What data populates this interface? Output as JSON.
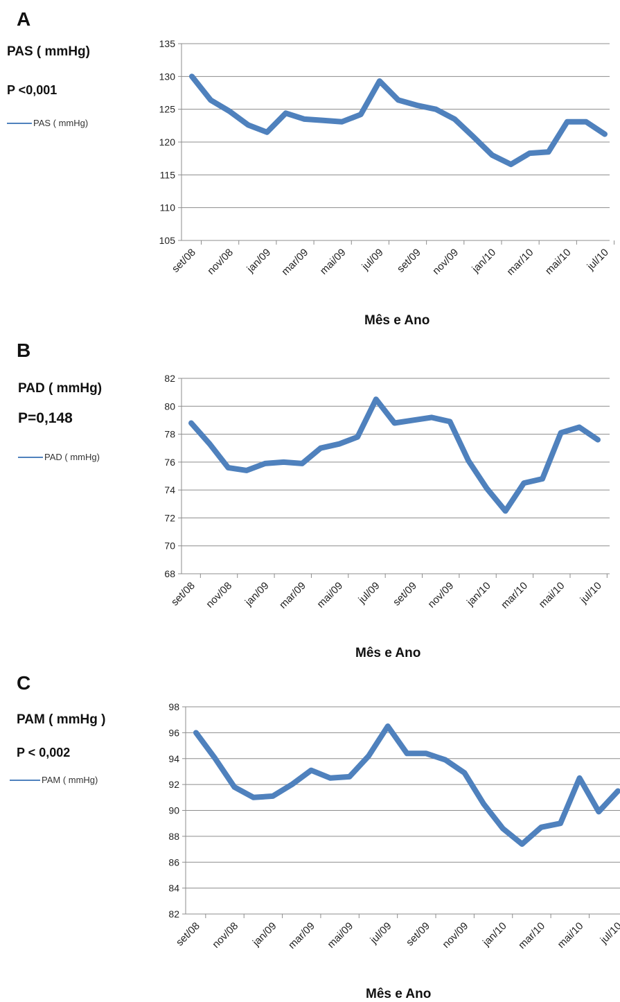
{
  "chart_data": [
    {
      "type": "line",
      "panel_letter": "A",
      "ylabel": "PAS ( mmHg)",
      "p_value": "P <0,001",
      "legend_label": "PAS ( mmHg)",
      "xlabel": "Mês e Ano",
      "ylim": [
        105,
        135
      ],
      "ytick_step": 5,
      "grid": true,
      "legend_position": "left",
      "color": "#4f81bd",
      "tick_labels": [
        "set/08",
        "nov/08",
        "jan/09",
        "mar/09",
        "mai/09",
        "jul/09",
        "set/09",
        "nov/09",
        "jan/10",
        "mar/10",
        "mai/10",
        "jul/10"
      ],
      "series": [
        {
          "name": "PAS ( mmHg)",
          "values": [
            130.0,
            126.4,
            124.7,
            122.6,
            121.5,
            124.4,
            123.5,
            123.3,
            123.1,
            124.2,
            129.3,
            126.4,
            125.6,
            125.0,
            123.5,
            120.8,
            118.0,
            116.6,
            118.3,
            118.5,
            123.1,
            123.1,
            121.2
          ]
        }
      ]
    },
    {
      "type": "line",
      "panel_letter": "B",
      "ylabel": "PAD ( mmHg)",
      "p_value": "P=0,148",
      "legend_label": "PAD ( mmHg)",
      "xlabel": "Mês e Ano",
      "ylim": [
        68,
        82
      ],
      "ytick_step": 2,
      "grid": true,
      "legend_position": "left",
      "color": "#4f81bd",
      "tick_labels": [
        "set/08",
        "nov/08",
        "jan/09",
        "mar/09",
        "mai/09",
        "jul/09",
        "set/09",
        "nov/09",
        "jan/10",
        "mar/10",
        "mai/10",
        "jul/10"
      ],
      "series": [
        {
          "name": "PAD ( mmHg)",
          "values": [
            78.8,
            77.3,
            75.6,
            75.4,
            75.9,
            76.0,
            75.9,
            77.0,
            77.3,
            77.8,
            80.5,
            78.8,
            79.0,
            79.2,
            78.9,
            76.1,
            74.1,
            72.5,
            74.5,
            74.8,
            78.1,
            78.5,
            77.6
          ]
        }
      ]
    },
    {
      "type": "line",
      "panel_letter": "C",
      "ylabel": "PAM ( mmHg )",
      "p_value": "P < 0,002",
      "legend_label": "PAM ( mmHg)",
      "xlabel": "Mês e Ano",
      "ylim": [
        82,
        98
      ],
      "ytick_step": 2,
      "grid": true,
      "legend_position": "left",
      "color": "#4f81bd",
      "tick_labels": [
        "set/08",
        "nov/08",
        "jan/09",
        "mar/09",
        "mai/09",
        "jul/09",
        "set/09",
        "nov/09",
        "jan/10",
        "mar/10",
        "mai/10",
        "jul/10"
      ],
      "series": [
        {
          "name": "PAM ( mmHg)",
          "values": [
            96.0,
            94.0,
            91.8,
            91.0,
            91.1,
            92.0,
            93.1,
            92.5,
            92.6,
            94.2,
            96.5,
            94.4,
            94.4,
            93.9,
            92.9,
            90.5,
            88.6,
            87.4,
            88.7,
            89.0,
            92.5,
            89.9,
            91.5
          ]
        }
      ]
    }
  ]
}
